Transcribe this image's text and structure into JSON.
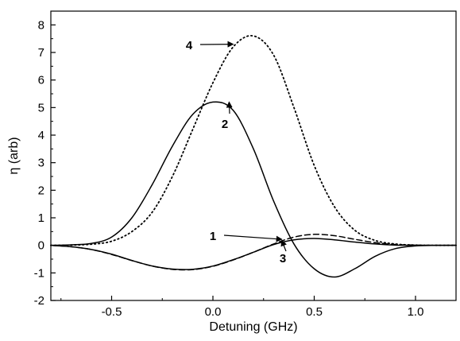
{
  "chart_data": {
    "type": "line",
    "title": "",
    "xlabel": "Detuning (GHz)",
    "ylabel": "η  (arb)",
    "xlim": [
      -0.8,
      1.2
    ],
    "ylim": [
      -2,
      8.5
    ],
    "xticks": [
      -0.5,
      0.0,
      0.5,
      1.0
    ],
    "xtick_labels": [
      "-0.5",
      "0.0",
      "0.5",
      "1.0"
    ],
    "yticks": [
      -2,
      -1,
      0,
      1,
      2,
      3,
      4,
      5,
      6,
      7,
      8
    ],
    "ytick_labels": [
      "-2",
      "-1",
      "0",
      "1",
      "2",
      "3",
      "4",
      "5",
      "6",
      "7",
      "8"
    ],
    "grid": false,
    "legend": "none",
    "x": [
      -0.8,
      -0.7,
      -0.6,
      -0.5,
      -0.4,
      -0.3,
      -0.2,
      -0.1,
      0.0,
      0.1,
      0.2,
      0.3,
      0.4,
      0.5,
      0.6,
      0.7,
      0.8,
      0.9,
      1.0,
      1.1,
      1.2
    ],
    "series": [
      {
        "label": "1",
        "style": "dashed",
        "values": [
          0.0,
          -0.05,
          -0.15,
          -0.33,
          -0.55,
          -0.75,
          -0.87,
          -0.88,
          -0.76,
          -0.53,
          -0.25,
          0.05,
          0.3,
          0.4,
          0.35,
          0.22,
          0.1,
          0.03,
          0.01,
          0.0,
          0.0
        ]
      },
      {
        "label": "2",
        "style": "solid",
        "values": [
          0.0,
          0.02,
          0.07,
          0.3,
          1.0,
          2.2,
          3.6,
          4.75,
          5.2,
          4.9,
          3.5,
          1.6,
          0.05,
          -0.85,
          -1.15,
          -0.85,
          -0.4,
          -0.12,
          -0.02,
          0.0,
          0.0
        ]
      },
      {
        "label": "3",
        "style": "solid",
        "values": [
          0.0,
          -0.05,
          -0.15,
          -0.32,
          -0.55,
          -0.75,
          -0.86,
          -0.87,
          -0.75,
          -0.52,
          -0.25,
          0.03,
          0.2,
          0.25,
          0.2,
          0.12,
          0.05,
          0.01,
          0.0,
          0.0,
          0.0
        ]
      },
      {
        "label": "4",
        "style": "dotted",
        "values": [
          0.0,
          0.01,
          0.04,
          0.15,
          0.5,
          1.2,
          2.5,
          4.2,
          5.9,
          7.2,
          7.6,
          6.9,
          5.0,
          2.9,
          1.4,
          0.55,
          0.18,
          0.05,
          0.01,
          0.0,
          0.0
        ]
      }
    ],
    "annotations": [
      {
        "text": "1",
        "arrow_to": [
          0.34,
          0.22
        ]
      },
      {
        "text": "2",
        "arrow_to": [
          0.08,
          5.2
        ]
      },
      {
        "text": "3",
        "arrow_to": [
          0.34,
          0.18
        ]
      },
      {
        "text": "4",
        "arrow_to": [
          0.1,
          7.3
        ]
      }
    ]
  }
}
